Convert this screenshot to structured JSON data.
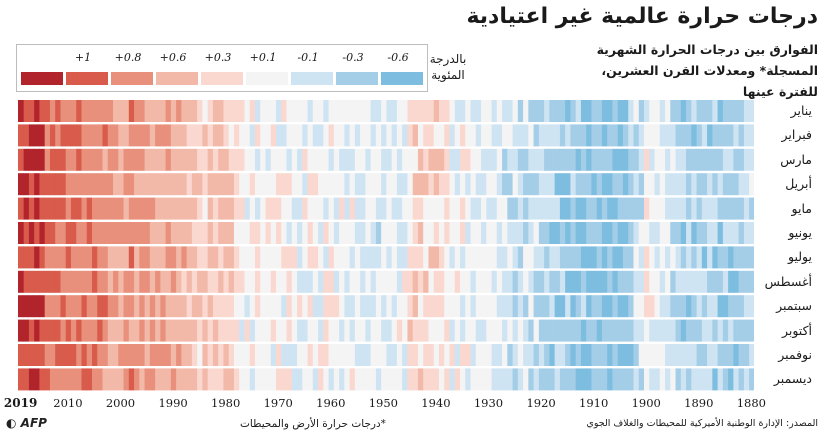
{
  "title": "درجات حرارة عالمية غير اعتيادية",
  "subtitle": "الفوارق بين درجات الحرارة الشهرية المسجلة* ومعدلات القرن العشرين، للفترة عينها",
  "legend": {
    "unit": "بالدرجة المئوية",
    "items": [
      {
        "label": "+1",
        "color": "#b2242c"
      },
      {
        "label": "+0.8",
        "color": "#d85b4b"
      },
      {
        "label": "+0.6",
        "color": "#e8907c"
      },
      {
        "label": "+0.3",
        "color": "#f2b8a8"
      },
      {
        "label": "+0.1",
        "color": "#fad8d0"
      },
      {
        "label": "-0.1",
        "color": "#f4f4f4"
      },
      {
        "label": "-0.3",
        "color": "#cfe4f3"
      },
      {
        "label": "-0.6",
        "color": "#a4cde7"
      },
      {
        "label": "",
        "color": "#7dbde0"
      }
    ]
  },
  "chart_data": {
    "type": "heatmap",
    "title": "درجات حرارة عالمية غير اعتيادية",
    "x_range": [
      1880,
      2019
    ],
    "x_direction": "right-to-left",
    "x_ticks": [
      "2019",
      "2010",
      "2000",
      "1990",
      "1980",
      "1970",
      "1960",
      "1950",
      "1940",
      "1930",
      "1920",
      "1910",
      "1900",
      "1890",
      "1880"
    ],
    "months": [
      "يناير",
      "فبراير",
      "مارس",
      "أبريل",
      "مايو",
      "يونيو",
      "يوليو",
      "أغسطس",
      "سبتمبر",
      "أكتوبر",
      "نوفمبر",
      "ديسمبر"
    ],
    "anomaly_anchors_by_year": [
      [
        1880,
        -0.2
      ],
      [
        1884,
        -0.35
      ],
      [
        1887,
        -0.35
      ],
      [
        1890,
        -0.3
      ],
      [
        1893,
        -0.35
      ],
      [
        1896,
        -0.15
      ],
      [
        1900,
        -0.05
      ],
      [
        1904,
        -0.45
      ],
      [
        1907,
        -0.45
      ],
      [
        1910,
        -0.45
      ],
      [
        1913,
        -0.4
      ],
      [
        1917,
        -0.35
      ],
      [
        1920,
        -0.25
      ],
      [
        1925,
        -0.2
      ],
      [
        1930,
        -0.1
      ],
      [
        1936,
        -0.05
      ],
      [
        1940,
        0.1
      ],
      [
        1944,
        0.2
      ],
      [
        1946,
        -0.05
      ],
      [
        1950,
        -0.15
      ],
      [
        1955,
        -0.1
      ],
      [
        1960,
        0.0
      ],
      [
        1965,
        -0.05
      ],
      [
        1970,
        0.02
      ],
      [
        1976,
        -0.05
      ],
      [
        1980,
        0.25
      ],
      [
        1985,
        0.2
      ],
      [
        1990,
        0.4
      ],
      [
        1995,
        0.45
      ],
      [
        1998,
        0.6
      ],
      [
        2000,
        0.45
      ],
      [
        2005,
        0.65
      ],
      [
        2010,
        0.7
      ],
      [
        2014,
        0.75
      ],
      [
        2016,
        0.98
      ],
      [
        2017,
        0.9
      ],
      [
        2019,
        0.95
      ]
    ]
  },
  "footnote": "*درجات حرارة الأرض والمحيطات",
  "source": "المصدر: الإدارة الوطنية الأميركية للمحيطات والغلاف الجوي",
  "logo_text": "AFP"
}
